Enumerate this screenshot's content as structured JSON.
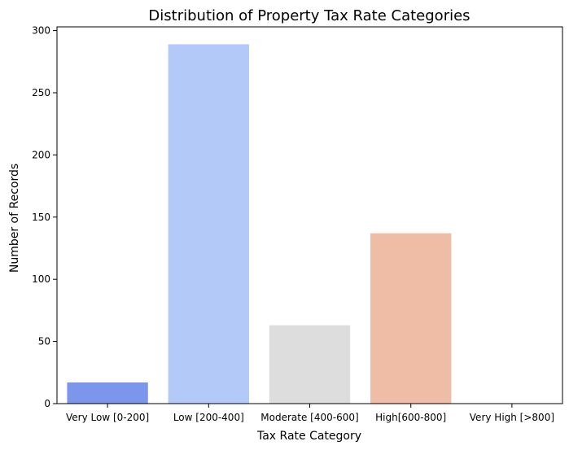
{
  "chart_data": {
    "type": "bar",
    "title": "Distribution of Property Tax Rate Categories",
    "xlabel": "Tax Rate Category",
    "ylabel": "Number of Records",
    "categories": [
      "Very Low [0-200]",
      "Low [200-400]",
      "Moderate [400-600]",
      "High[600-800]",
      "Very High [>800]"
    ],
    "values": [
      17,
      289,
      63,
      137,
      0
    ],
    "colors": [
      "#7b96ea",
      "#b3c9f7",
      "#dddddd",
      "#efbda6",
      "#e7745b"
    ],
    "ylim": [
      0,
      303
    ],
    "yticks": [
      0,
      50,
      100,
      150,
      200,
      250,
      300
    ],
    "grid": false,
    "legend": "none"
  }
}
